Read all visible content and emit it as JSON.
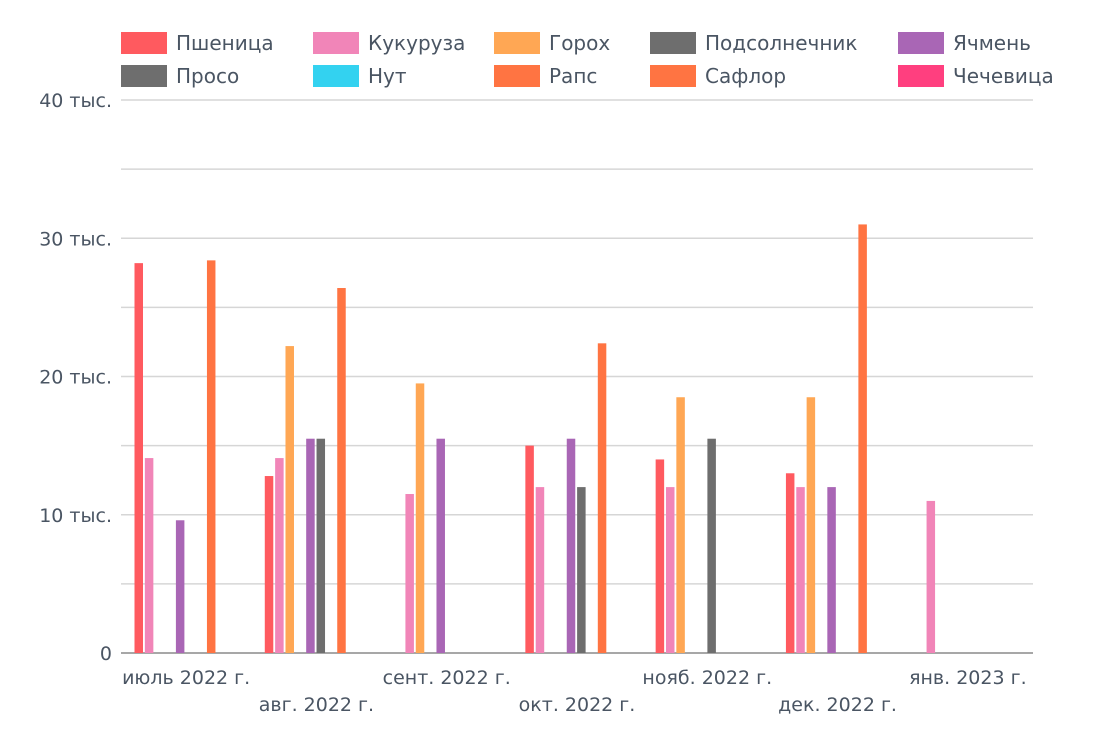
{
  "chart_data": {
    "type": "bar",
    "categories": [
      "июль 2022 г.",
      "авг. 2022 г.",
      "сент. 2022 г.",
      "окт. 2022 г.",
      "нояб. 2022 г.",
      "дек. 2022 г.",
      "янв. 2023 г."
    ],
    "y_ticks": [
      {
        "value": 0,
        "label": "0"
      },
      {
        "value": 10000,
        "label": "10 тыс."
      },
      {
        "value": 20000,
        "label": "20 тыс."
      },
      {
        "value": 30000,
        "label": "30 тыс."
      },
      {
        "value": 40000,
        "label": "40 тыс."
      }
    ],
    "ylim": [
      0,
      40000
    ],
    "grid": true,
    "legend_position": "top",
    "series": [
      {
        "name": "Пшеница",
        "color": "#ff5a5f",
        "values": [
          28200,
          12800,
          null,
          15000,
          14000,
          13000,
          null
        ]
      },
      {
        "name": "Кукуруза",
        "color": "#f185b8",
        "values": [
          14100,
          14100,
          11500,
          12000,
          12000,
          12000,
          11000
        ]
      },
      {
        "name": "Горох",
        "color": "#ffa754",
        "values": [
          null,
          22200,
          19500,
          null,
          18500,
          18500,
          null
        ]
      },
      {
        "name": "Подсолнечник",
        "color": "#6e6e6e",
        "values": [
          null,
          null,
          null,
          null,
          null,
          null,
          null
        ]
      },
      {
        "name": "Ячмень",
        "color": "#a966b5",
        "values": [
          9600,
          15500,
          15500,
          15500,
          null,
          12000,
          null
        ]
      },
      {
        "name": "Просо",
        "color": "#6e6e6e",
        "values": [
          null,
          15500,
          null,
          12000,
          15500,
          null,
          null
        ]
      },
      {
        "name": "Нут",
        "color": "#33d2f0",
        "values": [
          null,
          null,
          null,
          null,
          null,
          null,
          null
        ]
      },
      {
        "name": "Рапс",
        "color": "#ff7442",
        "values": [
          28400,
          26400,
          null,
          22400,
          null,
          31000,
          null
        ]
      },
      {
        "name": "Сафлор",
        "color": "#ff7442",
        "values": [
          null,
          null,
          null,
          null,
          null,
          null,
          null
        ]
      },
      {
        "name": "Чечевица",
        "color": "#ff3f7f",
        "values": [
          null,
          null,
          null,
          null,
          null,
          null,
          null
        ]
      }
    ]
  }
}
